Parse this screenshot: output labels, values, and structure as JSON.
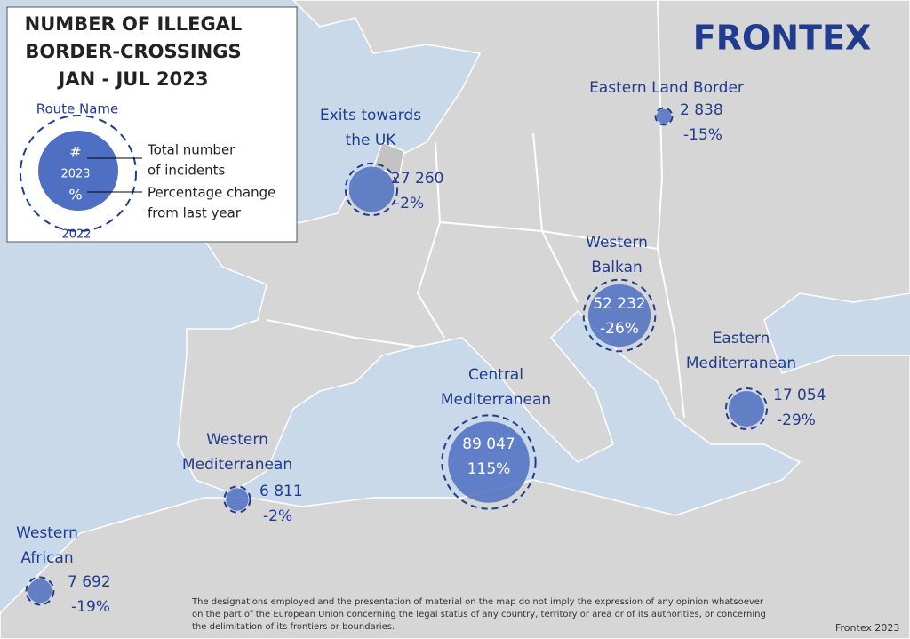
{
  "header": {
    "title_lines": [
      "NUMBER OF ILLEGAL",
      "BORDER-CROSSINGS",
      "JAN - JUL 2023"
    ],
    "logo": "FRONTEX"
  },
  "legend": {
    "route_name": "Route Name",
    "count": "#",
    "year": "2023",
    "change": "%",
    "previous_year": "2022",
    "count_note_lines": [
      "Total number",
      "of incidents"
    ],
    "change_note_lines": [
      "Percentage change",
      "from last year"
    ]
  },
  "routes": [
    {
      "name_lines": [
        "Exits towards",
        "the UK"
      ],
      "incidents": 27260,
      "incidents_label": "27 260",
      "change": "-2%"
    },
    {
      "name_lines": [
        "Eastern Land Border"
      ],
      "incidents": 2838,
      "incidents_label": "2 838",
      "change": "-15%"
    },
    {
      "name_lines": [
        "Western",
        "Balkan"
      ],
      "incidents": 52232,
      "incidents_label": "52 232",
      "change": "-26%"
    },
    {
      "name_lines": [
        "Eastern",
        "Mediterranean"
      ],
      "incidents": 17054,
      "incidents_label": "17 054",
      "change": "-29%"
    },
    {
      "name_lines": [
        "Central",
        "Mediterranean"
      ],
      "incidents": 89047,
      "incidents_label": "89 047",
      "change": "115%"
    },
    {
      "name_lines": [
        "Western",
        "Mediterranean"
      ],
      "incidents": 6811,
      "incidents_label": "6 811",
      "change": "-2%"
    },
    {
      "name_lines": [
        "Western",
        "African"
      ],
      "incidents": 7692,
      "incidents_label": "7 692",
      "change": "-19%"
    }
  ],
  "footer": {
    "disclaimer_lines": [
      "The designations employed and the presentation of material on the map do not imply the expression of any opinion whatsoever",
      "on the part of the European Union concerning the legal status of any country, territory or area or of its authorities, or concerning",
      "the delimitation of its frontiers or boundaries."
    ],
    "credit": "Frontex 2023"
  }
}
